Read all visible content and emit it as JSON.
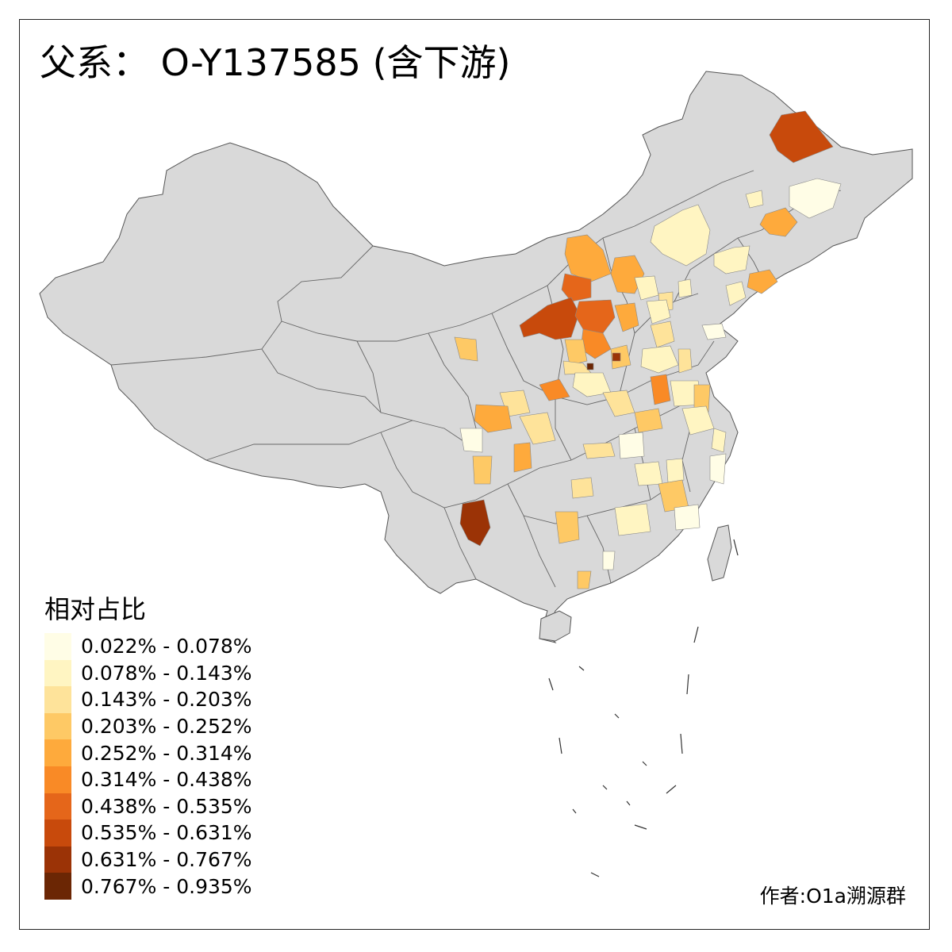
{
  "title": "父系： O-Y137585 (含下游)",
  "legend": {
    "title": "相对占比",
    "items": [
      {
        "label": "0.022% - 0.078%",
        "color": "#fffde6"
      },
      {
        "label": "0.078% - 0.143%",
        "color": "#fff5c2"
      },
      {
        "label": "0.143% - 0.203%",
        "color": "#fee39a"
      },
      {
        "label": "0.203% - 0.252%",
        "color": "#fec965"
      },
      {
        "label": "0.252% - 0.314%",
        "color": "#feaa3c"
      },
      {
        "label": "0.314% - 0.438%",
        "color": "#f98a26"
      },
      {
        "label": "0.438% - 0.535%",
        "color": "#e5661a"
      },
      {
        "label": "0.535% - 0.631%",
        "color": "#c84a0c"
      },
      {
        "label": "0.631% - 0.767%",
        "color": "#9b3306"
      },
      {
        "label": "0.767% - 0.935%",
        "color": "#6b2604"
      }
    ]
  },
  "credit": "作者:O1a溯源群",
  "colors": {
    "base_land": "#d9d9d9",
    "border": "#555555"
  }
}
